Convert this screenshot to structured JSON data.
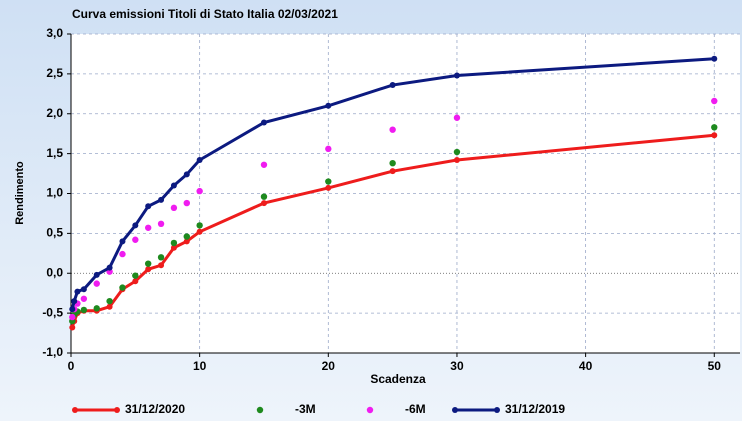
{
  "chart_data": {
    "type": "line",
    "title": "Curva emissioni Titoli di Stato Italia 02/03/2021",
    "x_label": "Scadenza",
    "y_label": "Rendimento",
    "x": [
      0.1,
      0.25,
      0.5,
      1,
      2,
      3,
      4,
      5,
      6,
      7,
      8,
      9,
      10,
      15,
      20,
      25,
      30,
      50
    ],
    "series": [
      {
        "name": "31/12/2020",
        "color": "#ee1c1c",
        "mode": "line",
        "values": [
          -0.68,
          -0.6,
          -0.5,
          -0.47,
          -0.47,
          -0.42,
          -0.2,
          -0.1,
          0.05,
          0.1,
          0.32,
          0.4,
          0.52,
          0.88,
          1.07,
          1.28,
          1.42,
          1.73
        ]
      },
      {
        "name": "-3M",
        "color": "#1e8a1e",
        "mode": "markers",
        "values": [
          -0.6,
          -0.52,
          -0.48,
          -0.46,
          -0.44,
          -0.35,
          -0.18,
          -0.03,
          0.12,
          0.2,
          0.38,
          0.46,
          0.6,
          0.96,
          1.15,
          1.38,
          1.52,
          1.83
        ]
      },
      {
        "name": "-6M",
        "color": "#f01cf0",
        "mode": "markers",
        "values": [
          -0.55,
          -0.45,
          -0.38,
          -0.32,
          -0.13,
          0.02,
          0.24,
          0.42,
          0.57,
          0.62,
          0.82,
          0.88,
          1.03,
          1.36,
          1.56,
          1.8,
          1.95,
          2.16
        ]
      },
      {
        "name": "31/12/2019",
        "color": "#0c1a80",
        "mode": "line",
        "values": [
          -0.45,
          -0.35,
          -0.23,
          -0.2,
          -0.02,
          0.07,
          0.4,
          0.6,
          0.84,
          0.92,
          1.1,
          1.24,
          1.42,
          1.89,
          2.1,
          2.36,
          2.48,
          2.69
        ]
      }
    ],
    "xlim": [
      0,
      52
    ],
    "xticks": [
      0,
      10,
      20,
      30,
      40,
      50
    ],
    "ylim": [
      -1,
      3
    ],
    "yticks": [
      {
        "value": -1,
        "label": "-1,0"
      },
      {
        "value": -0.5,
        "label": "-0,5"
      },
      {
        "value": 0,
        "label": "0,0"
      },
      {
        "value": 0.5,
        "label": "0,5"
      },
      {
        "value": 1,
        "label": "1,0"
      },
      {
        "value": 1.5,
        "label": "1,5"
      },
      {
        "value": 2,
        "label": "2,0"
      },
      {
        "value": 2.5,
        "label": "2,5"
      },
      {
        "value": 3,
        "label": "3,0"
      }
    ],
    "grid": true,
    "legend": "bottom"
  }
}
